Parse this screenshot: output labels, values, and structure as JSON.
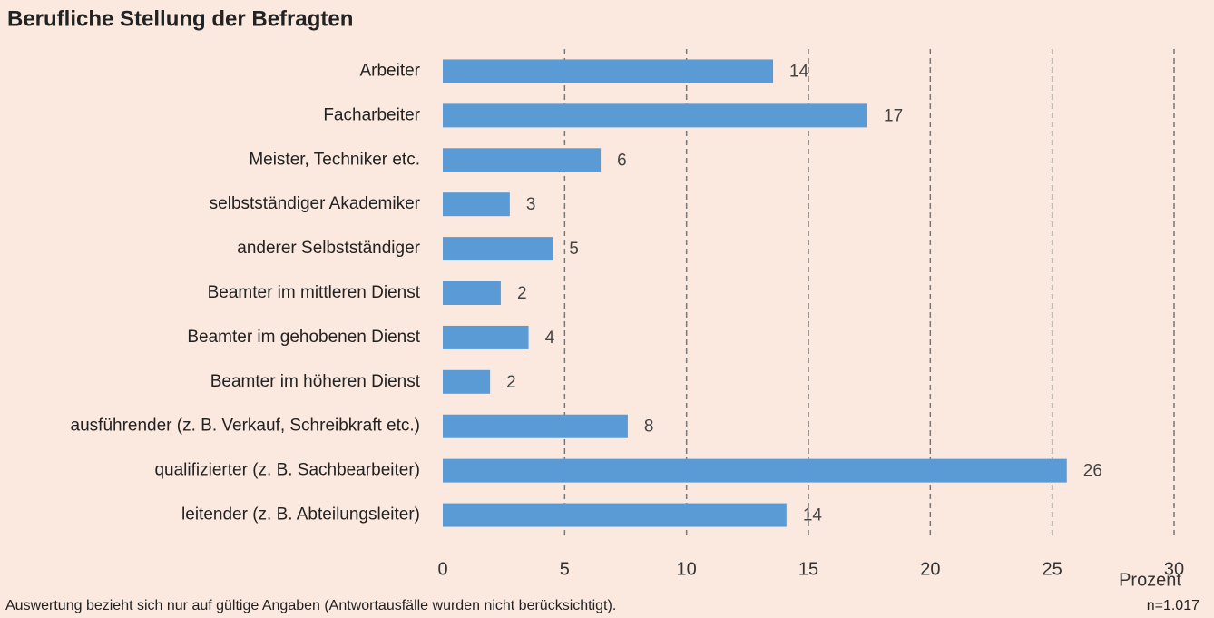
{
  "chart_data": {
    "type": "bar",
    "orientation": "horizontal",
    "title": "Berufliche Stellung der Befragten",
    "categories": [
      "Arbeiter",
      "Facharbeiter",
      "Meister, Techniker etc.",
      "selbstständiger Akademiker",
      "anderer Selbstständiger",
      "Beamter im mittleren Dienst",
      "Beamter im gehobenen Dienst",
      "Beamter im höheren Dienst",
      "ausführender (z. B. Verkauf, Schreibkraft etc.)",
      "qualifizierter (z. B. Sachbearbeiter)",
      "leitender (z. B. Abteilungsleiter)"
    ],
    "values": [
      13.55,
      17.42,
      6.48,
      2.75,
      4.52,
      2.38,
      3.52,
      1.94,
      7.59,
      25.6,
      14.1
    ],
    "value_labels": [
      "14",
      "17",
      "6",
      "3",
      "5",
      "2",
      "4",
      "2",
      "8",
      "26",
      "14"
    ],
    "color": "#5b9bd5",
    "xlim": [
      0,
      30
    ],
    "xticks": [
      0,
      5,
      10,
      15,
      20,
      25,
      30
    ],
    "grid": true,
    "xlabel": "Prozent",
    "note": "Auswertung bezieht sich nur auf gültige Angaben (Antwortausfälle wurden nicht berücksichtigt).",
    "sample_size": "n=1.017"
  }
}
